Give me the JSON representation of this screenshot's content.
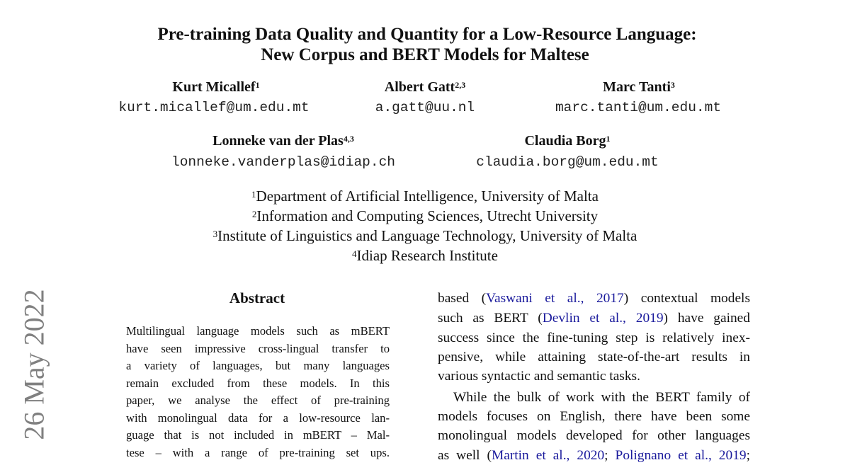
{
  "title": {
    "line1": "Pre-training Data Quality and Quantity for a Low-Resource Language:",
    "line2": "New Corpus and BERT Models for Maltese"
  },
  "authors": [
    {
      "name": "Kurt Micallef",
      "sup": "1",
      "email": "kurt.micallef@um.edu.mt"
    },
    {
      "name": "Albert Gatt",
      "sup": "2,3",
      "email": "a.gatt@uu.nl"
    },
    {
      "name": "Marc Tanti",
      "sup": "3",
      "email": "marc.tanti@um.edu.mt"
    },
    {
      "name": "Lonneke van der Plas",
      "sup": "4,3",
      "email": "lonneke.vanderplas@idiap.ch"
    },
    {
      "name": "Claudia Borg",
      "sup": "1",
      "email": "claudia.borg@um.edu.mt"
    }
  ],
  "affiliations": [
    {
      "sup": "1",
      "text": "Department of Artificial Intelligence, University of Malta"
    },
    {
      "sup": "2",
      "text": "Information and Computing Sciences, Utrecht University"
    },
    {
      "sup": "3",
      "text": "Institute of Linguistics and Language Technology, University of Malta"
    },
    {
      "sup": "4",
      "text": "Idiap Research Institute"
    }
  ],
  "arxiv_date": "26 May 2022",
  "abstract": {
    "heading": "Abstract",
    "lines": [
      "Multilingual language models such as mBERT",
      "have seen impressive cross-lingual transfer to",
      "a variety of languages, but many languages",
      "remain excluded from these models.  In this",
      "paper, we analyse the effect of pre-training",
      "with monolingual data for a low-resource lan-",
      "guage that is not included in mBERT – Mal-",
      "tese – with a range of pre-training set ups."
    ]
  },
  "body": {
    "link_color": "#1a1a9c",
    "lines": [
      [
        {
          "t": "based ("
        },
        {
          "t": "Vaswani et al., 2017",
          "link": true
        },
        {
          "t": ") contextual models"
        }
      ],
      [
        {
          "t": "such as BERT ("
        },
        {
          "t": "Devlin et al., 2019",
          "link": true
        },
        {
          "t": ") have gained"
        }
      ],
      [
        {
          "t": "success since the fine-tuning step is relatively inex-"
        }
      ],
      [
        {
          "t": "pensive, while attaining state-of-the-art results in"
        }
      ],
      [
        {
          "t": "various syntactic and semantic tasks."
        }
      ],
      [
        {
          "t": "While the bulk of work with the BERT family of"
        }
      ],
      [
        {
          "t": "models focuses on English, there have been some"
        }
      ],
      [
        {
          "t": "monolingual models developed for other languages"
        }
      ],
      [
        {
          "t": "as well ("
        },
        {
          "t": "Martin et al., 2020",
          "link": true
        },
        {
          "t": "; "
        },
        {
          "t": "Polignano et al., 2019",
          "link": true
        },
        {
          "t": ";"
        }
      ]
    ]
  }
}
